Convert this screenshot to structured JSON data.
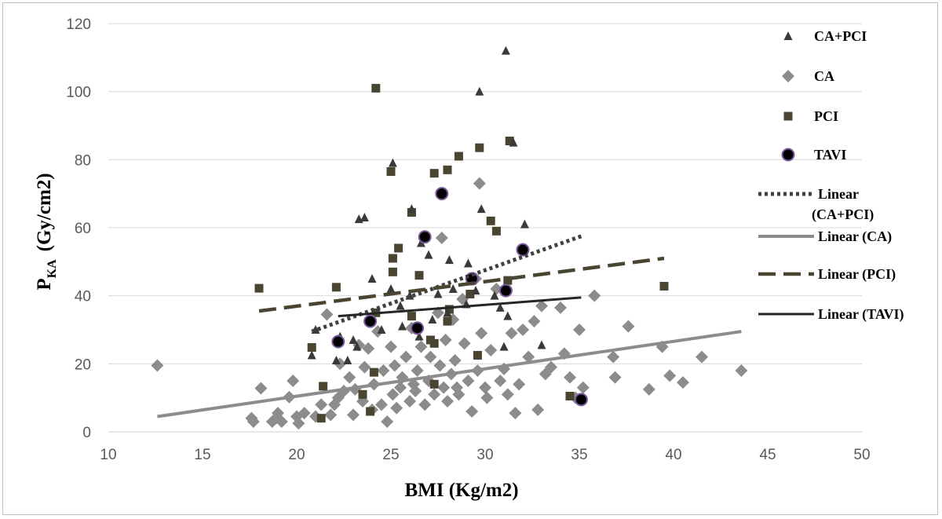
{
  "chart_data": {
    "type": "scatter",
    "title": "",
    "xlabel": "BMI (Kg/m2)",
    "ylabel_main": "P",
    "ylabel_sub": "KA",
    "ylabel_unit": "(Gy/cm2)",
    "xlim": [
      10,
      50
    ],
    "ylim": [
      0,
      120
    ],
    "x_ticks": [
      "10",
      "15",
      "20",
      "25",
      "30",
      "35",
      "40",
      "45",
      "50"
    ],
    "y_ticks": [
      "0",
      "20",
      "40",
      "60",
      "80",
      "100",
      "120"
    ],
    "grid": "horizontal",
    "legend_position": "right",
    "legend": [
      "CA+PCI",
      "CA",
      "PCI",
      "TAVI",
      "Linear",
      "(CA+PCI)",
      "Linear (CA)",
      "Linear (PCI)",
      "Linear (TAVI)"
    ],
    "colors": {
      "ca_pci": "#3a3a3a",
      "ca": "#8c8c8c",
      "pci": "#4a4530",
      "tavi_fill": "#000000",
      "tavi_edge": "#7a5a9a",
      "trend_tavi": "#262626",
      "grid": "#d9d9d9"
    },
    "series": [
      {
        "name": "CA+PCI",
        "marker": "triangle",
        "points": [
          [
            31.1,
            112
          ],
          [
            29.7,
            100
          ],
          [
            31.5,
            85
          ],
          [
            25.1,
            79
          ],
          [
            23.3,
            62.5
          ],
          [
            23.6,
            63
          ],
          [
            26.1,
            65.5
          ],
          [
            29.8,
            65.5
          ],
          [
            32.1,
            61
          ],
          [
            26.6,
            55.5
          ],
          [
            27.0,
            52
          ],
          [
            28.1,
            50.5
          ],
          [
            29.1,
            49.5
          ],
          [
            24.0,
            45
          ],
          [
            25.0,
            42
          ],
          [
            26.0,
            40
          ],
          [
            27.5,
            40.5
          ],
          [
            28.3,
            42
          ],
          [
            29.5,
            41.5
          ],
          [
            30.5,
            40
          ],
          [
            25.5,
            37
          ],
          [
            27.2,
            33
          ],
          [
            28.0,
            35
          ],
          [
            29.0,
            37.5
          ],
          [
            30.8,
            36.5
          ],
          [
            31.2,
            34
          ],
          [
            24.5,
            30
          ],
          [
            25.6,
            31
          ],
          [
            26.5,
            28
          ],
          [
            23.0,
            27
          ],
          [
            23.2,
            25
          ],
          [
            22.1,
            21
          ],
          [
            22.7,
            21
          ],
          [
            22.3,
            28
          ],
          [
            21.0,
            30
          ],
          [
            20.8,
            22.5
          ],
          [
            33.0,
            25.5
          ],
          [
            31.0,
            25
          ],
          [
            35.0,
            10
          ]
        ]
      },
      {
        "name": "CA",
        "marker": "diamond",
        "points": [
          [
            12.6,
            19.5
          ],
          [
            17.6,
            4
          ],
          [
            17.7,
            3
          ],
          [
            18.1,
            12.8
          ],
          [
            18.7,
            3
          ],
          [
            18.9,
            4
          ],
          [
            19.0,
            5.5
          ],
          [
            19.2,
            3
          ],
          [
            19.6,
            10.2
          ],
          [
            20.0,
            4.5
          ],
          [
            20.1,
            2.5
          ],
          [
            20.4,
            5.5
          ],
          [
            19.8,
            15
          ],
          [
            21.0,
            4.5
          ],
          [
            21.3,
            8
          ],
          [
            21.6,
            34.5
          ],
          [
            21.8,
            5
          ],
          [
            22.0,
            8
          ],
          [
            22.2,
            10
          ],
          [
            22.3,
            20
          ],
          [
            22.5,
            12
          ],
          [
            22.8,
            16
          ],
          [
            23.0,
            5
          ],
          [
            23.1,
            12.5
          ],
          [
            23.3,
            25.5
          ],
          [
            23.5,
            9
          ],
          [
            23.6,
            19
          ],
          [
            23.8,
            24.5
          ],
          [
            24.0,
            6.5
          ],
          [
            24.1,
            14
          ],
          [
            24.3,
            29.5
          ],
          [
            24.5,
            8
          ],
          [
            24.6,
            18
          ],
          [
            24.8,
            3
          ],
          [
            25.0,
            25
          ],
          [
            25.1,
            11
          ],
          [
            25.2,
            19.5
          ],
          [
            25.3,
            7
          ],
          [
            25.5,
            13
          ],
          [
            25.6,
            16
          ],
          [
            25.8,
            22
          ],
          [
            26.0,
            9
          ],
          [
            26.1,
            30.5
          ],
          [
            26.2,
            14
          ],
          [
            26.3,
            12
          ],
          [
            26.4,
            18
          ],
          [
            26.6,
            25
          ],
          [
            26.8,
            8
          ],
          [
            27.0,
            15
          ],
          [
            27.1,
            22
          ],
          [
            27.3,
            11
          ],
          [
            27.5,
            35
          ],
          [
            27.6,
            19.5
          ],
          [
            27.7,
            57
          ],
          [
            27.8,
            13
          ],
          [
            27.9,
            27
          ],
          [
            28.0,
            9
          ],
          [
            28.2,
            17
          ],
          [
            28.3,
            33
          ],
          [
            28.4,
            21
          ],
          [
            28.5,
            13
          ],
          [
            28.6,
            11
          ],
          [
            28.8,
            39
          ],
          [
            28.9,
            26
          ],
          [
            29.1,
            15
          ],
          [
            29.3,
            6
          ],
          [
            29.5,
            45
          ],
          [
            29.6,
            18
          ],
          [
            29.7,
            73
          ],
          [
            29.8,
            29
          ],
          [
            30.0,
            13
          ],
          [
            30.1,
            10
          ],
          [
            30.3,
            24
          ],
          [
            30.6,
            42
          ],
          [
            30.8,
            15
          ],
          [
            31.0,
            18.5
          ],
          [
            31.2,
            11
          ],
          [
            31.4,
            29
          ],
          [
            31.6,
            5.5
          ],
          [
            31.8,
            14
          ],
          [
            32.0,
            30
          ],
          [
            32.3,
            22
          ],
          [
            32.6,
            32.5
          ],
          [
            32.8,
            6.5
          ],
          [
            33.0,
            37
          ],
          [
            33.2,
            17
          ],
          [
            33.5,
            19
          ],
          [
            34.0,
            36.5
          ],
          [
            34.2,
            23
          ],
          [
            34.5,
            16
          ],
          [
            34.8,
            10
          ],
          [
            35.0,
            30
          ],
          [
            35.2,
            13
          ],
          [
            35.8,
            40
          ],
          [
            36.8,
            22
          ],
          [
            36.9,
            16
          ],
          [
            37.6,
            31
          ],
          [
            38.7,
            12.5
          ],
          [
            39.4,
            25
          ],
          [
            39.8,
            16.5
          ],
          [
            40.5,
            14.5
          ],
          [
            41.5,
            22
          ],
          [
            43.6,
            18
          ]
        ]
      },
      {
        "name": "PCI",
        "marker": "square",
        "points": [
          [
            24.2,
            101
          ],
          [
            31.3,
            85.5
          ],
          [
            29.7,
            83.5
          ],
          [
            28.6,
            81
          ],
          [
            28.0,
            77
          ],
          [
            27.3,
            76
          ],
          [
            25.0,
            76.5
          ],
          [
            30.3,
            62
          ],
          [
            30.6,
            59
          ],
          [
            26.1,
            64.5
          ],
          [
            25.4,
            54
          ],
          [
            25.1,
            51
          ],
          [
            25.1,
            47
          ],
          [
            26.5,
            46
          ],
          [
            22.1,
            42.5
          ],
          [
            18.0,
            42.2
          ],
          [
            39.5,
            42.8
          ],
          [
            29.2,
            40.5
          ],
          [
            31.2,
            44.5
          ],
          [
            28.0,
            32.5
          ],
          [
            28.1,
            36
          ],
          [
            27.1,
            27
          ],
          [
            27.3,
            26
          ],
          [
            24.2,
            35
          ],
          [
            26.1,
            34
          ],
          [
            29.6,
            22.5
          ],
          [
            20.8,
            24.8
          ],
          [
            21.4,
            13.4
          ],
          [
            23.5,
            11
          ],
          [
            24.1,
            17.5
          ],
          [
            27.3,
            14
          ],
          [
            21.3,
            4
          ],
          [
            23.9,
            6
          ],
          [
            34.5,
            10.5
          ]
        ]
      },
      {
        "name": "TAVI",
        "marker": "circle",
        "points": [
          [
            27.7,
            70
          ],
          [
            26.8,
            57.3
          ],
          [
            32.0,
            53.5
          ],
          [
            29.3,
            45
          ],
          [
            31.1,
            41.5
          ],
          [
            23.9,
            32.5
          ],
          [
            26.4,
            30.5
          ],
          [
            22.2,
            26.5
          ],
          [
            35.1,
            9.5
          ]
        ]
      }
    ],
    "trendlines": [
      {
        "name": "Linear (CA+PCI)",
        "style": "dotted",
        "x": [
          20.8,
          35.1
        ],
        "y": [
          29.5,
          57.5
        ]
      },
      {
        "name": "Linear (CA)",
        "style": "solid-gray",
        "x": [
          12.6,
          43.6
        ],
        "y": [
          4.5,
          29.5
        ]
      },
      {
        "name": "Linear (PCI)",
        "style": "dashed",
        "x": [
          18.0,
          39.5
        ],
        "y": [
          35.5,
          51
        ]
      },
      {
        "name": "Linear (TAVI)",
        "style": "solid-black",
        "x": [
          22.2,
          35.1
        ],
        "y": [
          34,
          39.5
        ]
      }
    ]
  }
}
